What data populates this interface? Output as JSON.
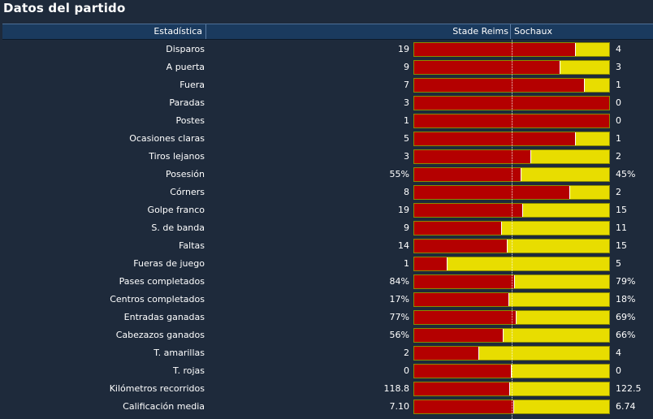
{
  "title": "Datos del partido",
  "header": {
    "stat": "Estadística",
    "home": "Stade Reims",
    "away": "Sochaux"
  },
  "colors": {
    "home": "#b40000",
    "away": "#e8dd00",
    "header_bg": "#1a3a5e",
    "page_bg": "#1e2a3b"
  },
  "rows": [
    {
      "label": "Disparos",
      "home": "19",
      "away": "4",
      "home_share": 0.83
    },
    {
      "label": "A puerta",
      "home": "9",
      "away": "3",
      "home_share": 0.75
    },
    {
      "label": "Fuera",
      "home": "7",
      "away": "1",
      "home_share": 0.875
    },
    {
      "label": "Paradas",
      "home": "3",
      "away": "0",
      "home_share": 1.0
    },
    {
      "label": "Postes",
      "home": "1",
      "away": "0",
      "home_share": 1.0
    },
    {
      "label": "Ocasiones claras",
      "home": "5",
      "away": "1",
      "home_share": 0.83
    },
    {
      "label": "Tiros lejanos",
      "home": "3",
      "away": "2",
      "home_share": 0.6
    },
    {
      "label": "Posesión",
      "home": "55%",
      "away": "45%",
      "home_share": 0.55
    },
    {
      "label": "Córners",
      "home": "8",
      "away": "2",
      "home_share": 0.8
    },
    {
      "label": "Golpe franco",
      "home": "19",
      "away": "15",
      "home_share": 0.56
    },
    {
      "label": "S. de banda",
      "home": "9",
      "away": "11",
      "home_share": 0.45
    },
    {
      "label": "Faltas",
      "home": "14",
      "away": "15",
      "home_share": 0.48
    },
    {
      "label": "Fueras de juego",
      "home": "1",
      "away": "5",
      "home_share": 0.17
    },
    {
      "label": "Pases completados",
      "home": "84%",
      "away": "79%",
      "home_share": 0.515
    },
    {
      "label": "Centros completados",
      "home": "17%",
      "away": "18%",
      "home_share": 0.486
    },
    {
      "label": "Entradas ganadas",
      "home": "77%",
      "away": "69%",
      "home_share": 0.527
    },
    {
      "label": "Cabezazos ganados",
      "home": "56%",
      "away": "66%",
      "home_share": 0.459
    },
    {
      "label": "T. amarillas",
      "home": "2",
      "away": "4",
      "home_share": 0.333
    },
    {
      "label": "T. rojas",
      "home": "0",
      "away": "0",
      "home_share": 0.5
    },
    {
      "label": "Kilómetros recorridos",
      "home": "118.8",
      "away": "122.5",
      "home_share": 0.492
    },
    {
      "label": "Calificación media",
      "home": "7.10",
      "away": "6.74",
      "home_share": 0.513
    }
  ]
}
